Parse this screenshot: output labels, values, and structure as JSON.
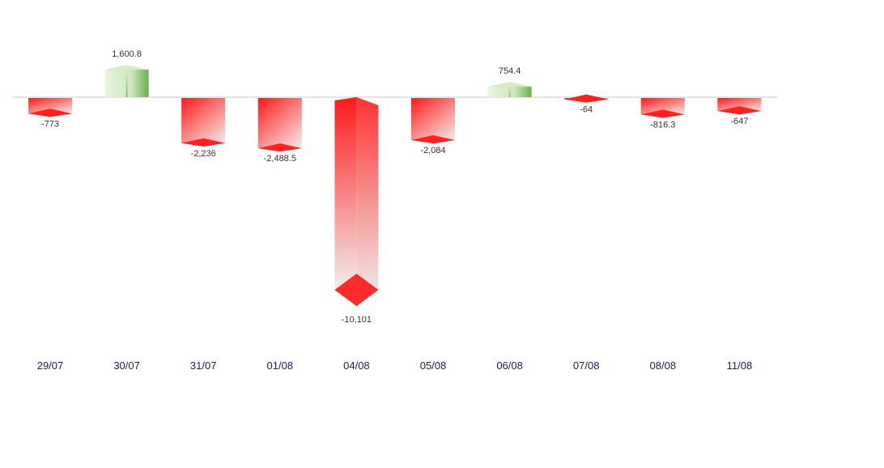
{
  "chart_data": {
    "type": "bar",
    "style": "3d",
    "categories": [
      "29/07",
      "30/07",
      "31/07",
      "01/08",
      "04/08",
      "05/08",
      "06/08",
      "07/08",
      "08/08",
      "11/08"
    ],
    "values": [
      -773,
      1600.8,
      -2236,
      -2488.5,
      -10101,
      -2084,
      754.4,
      -64,
      -816.3,
      -647
    ],
    "value_labels": [
      "-773",
      "1,600.8",
      "-2,236",
      "-2,488.5",
      "-10,101",
      "-2,084",
      "754.4",
      "-64",
      "-816.3",
      "-647"
    ],
    "title": "",
    "xlabel": "",
    "ylabel": "",
    "ylim": [
      -10101,
      1600.8
    ],
    "grid": false,
    "legend": "none",
    "colors": {
      "negative": "#ff1a1a",
      "negative_light": "#f2eeee",
      "positive": "#6ab04c",
      "positive_light": "#e8f4e0",
      "baseline": "#cccccc",
      "tick_text": "#1a1a66",
      "value_text": "#333333"
    }
  }
}
